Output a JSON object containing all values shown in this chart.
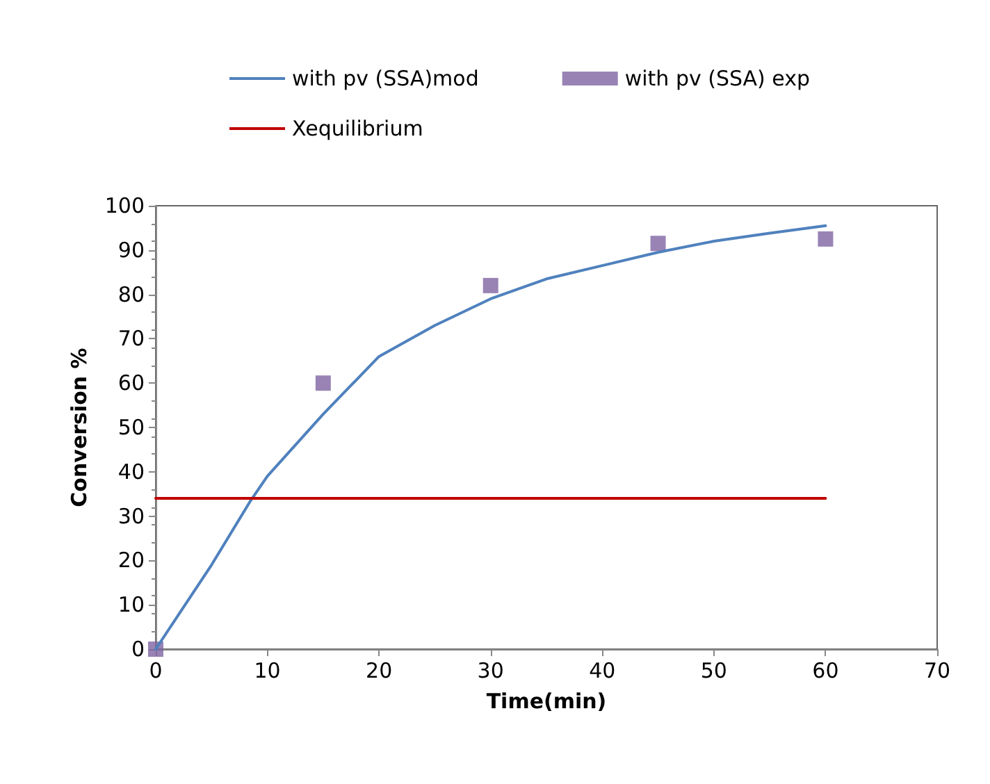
{
  "chart_data": {
    "type": "line",
    "xlabel": "Time(min)",
    "ylabel": "Conversion %",
    "xlim": [
      0,
      70
    ],
    "xticks": [
      0,
      10,
      20,
      30,
      40,
      50,
      60,
      70
    ],
    "ylim": [
      0,
      100
    ],
    "yticks": [
      0,
      10,
      20,
      30,
      40,
      50,
      60,
      70,
      80,
      90,
      100
    ],
    "grid": false,
    "legend": "top",
    "series": [
      {
        "name": "with pv (SSA)mod",
        "marker": "none",
        "color": "#4f81bd",
        "x": [
          0,
          5,
          8.5,
          10,
          15,
          20,
          25,
          30,
          35,
          40,
          45,
          50,
          55,
          60
        ],
        "values": [
          0,
          19,
          33.5,
          39,
          53,
          66,
          73,
          79,
          83.5,
          86.5,
          89.5,
          92,
          93.8,
          95.5
        ]
      },
      {
        "name": "with pv (SSA) exp",
        "type": "scatter",
        "marker": "square",
        "color": "#8064a2",
        "x": [
          0,
          15,
          30,
          45,
          60
        ],
        "values": [
          0,
          60,
          82,
          91.5,
          92.5
        ]
      },
      {
        "name": "Xequilibrium",
        "type": "line",
        "marker": "none",
        "color": "#c00000",
        "x": [
          0,
          60
        ],
        "values": [
          34,
          34
        ]
      }
    ]
  }
}
